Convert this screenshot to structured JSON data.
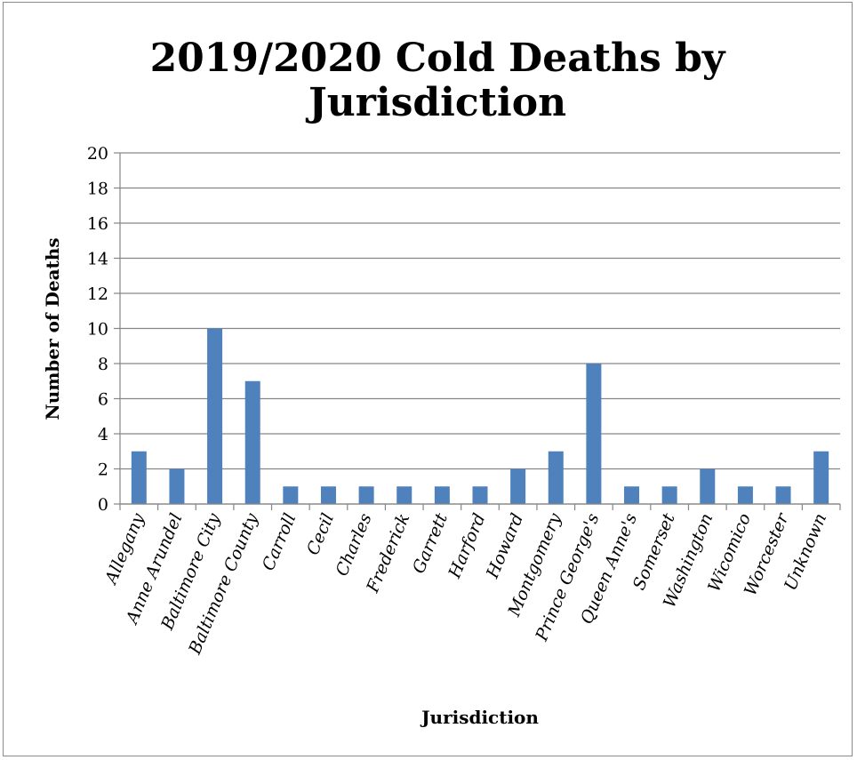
{
  "chart_data": {
    "type": "bar",
    "title_lines": [
      "2019/2020 Cold Deaths by",
      "Jurisdiction"
    ],
    "xlabel": "Jurisdiction",
    "ylabel": "Number of Deaths",
    "ylim": [
      0,
      20
    ],
    "yticks": [
      0,
      2,
      4,
      6,
      8,
      10,
      12,
      14,
      16,
      18,
      20
    ],
    "grid": true,
    "legend": "none",
    "categories": [
      "Allegany",
      "Anne Arundel",
      "Baltimore City",
      "Baltimore County",
      "Carroll",
      "Cecil",
      "Charles",
      "Frederick",
      "Garrett",
      "Harford",
      "Howard",
      "Montgomery",
      "Prince George's",
      "Queen Anne's",
      "Somerset",
      "Washington",
      "Wicomico",
      "Worcester",
      "Unknown"
    ],
    "series": [
      {
        "values": [
          3,
          2,
          10,
          7,
          1,
          1,
          1,
          1,
          1,
          1,
          2,
          3,
          8,
          1,
          1,
          2,
          1,
          1,
          3
        ]
      }
    ],
    "bar_color": "#4f81bd",
    "grid_color": "#868686"
  }
}
